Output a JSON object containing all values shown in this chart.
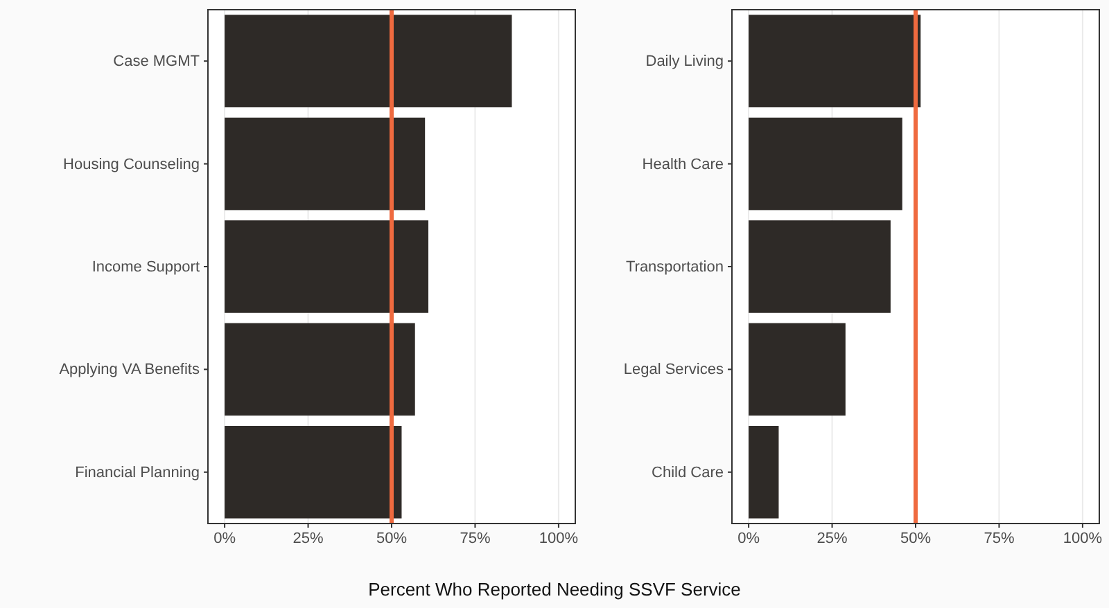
{
  "chart_data": [
    {
      "type": "bar",
      "orientation": "horizontal",
      "xlabel": "Percent Who Reported Needing SSVF Service",
      "categories": [
        "Case MGMT",
        "Housing Counseling",
        "Income Support",
        "Applying VA Benefits",
        "Financial Planning"
      ],
      "values": [
        86,
        60,
        61,
        57,
        53
      ],
      "color": "#2e2a27",
      "xlim": [
        -5,
        105
      ],
      "xticks": [
        {
          "value": 0,
          "label": "0%"
        },
        {
          "value": 25,
          "label": "25%"
        },
        {
          "value": 50,
          "label": "50%"
        },
        {
          "value": 75,
          "label": "75%"
        },
        {
          "value": 100,
          "label": "100%"
        }
      ],
      "grid": "x",
      "ref_lines": [
        {
          "axis": "x",
          "value": 50,
          "color": "#ef6a3f"
        }
      ]
    },
    {
      "type": "bar",
      "orientation": "horizontal",
      "categories": [
        "Daily Living",
        "Health Care",
        "Transportation",
        "Legal Services",
        "Child Care"
      ],
      "values": [
        51.5,
        46,
        42.5,
        29,
        9
      ],
      "color": "#2e2a27",
      "xlim": [
        -5,
        105
      ],
      "xticks": [
        {
          "value": 0,
          "label": "0%"
        },
        {
          "value": 25,
          "label": "25%"
        },
        {
          "value": 50,
          "label": "50%"
        },
        {
          "value": 75,
          "label": "75%"
        },
        {
          "value": 100,
          "label": "100%"
        }
      ],
      "grid": "x",
      "ref_lines": [
        {
          "axis": "x",
          "value": 50,
          "color": "#ef6a3f"
        }
      ]
    }
  ]
}
